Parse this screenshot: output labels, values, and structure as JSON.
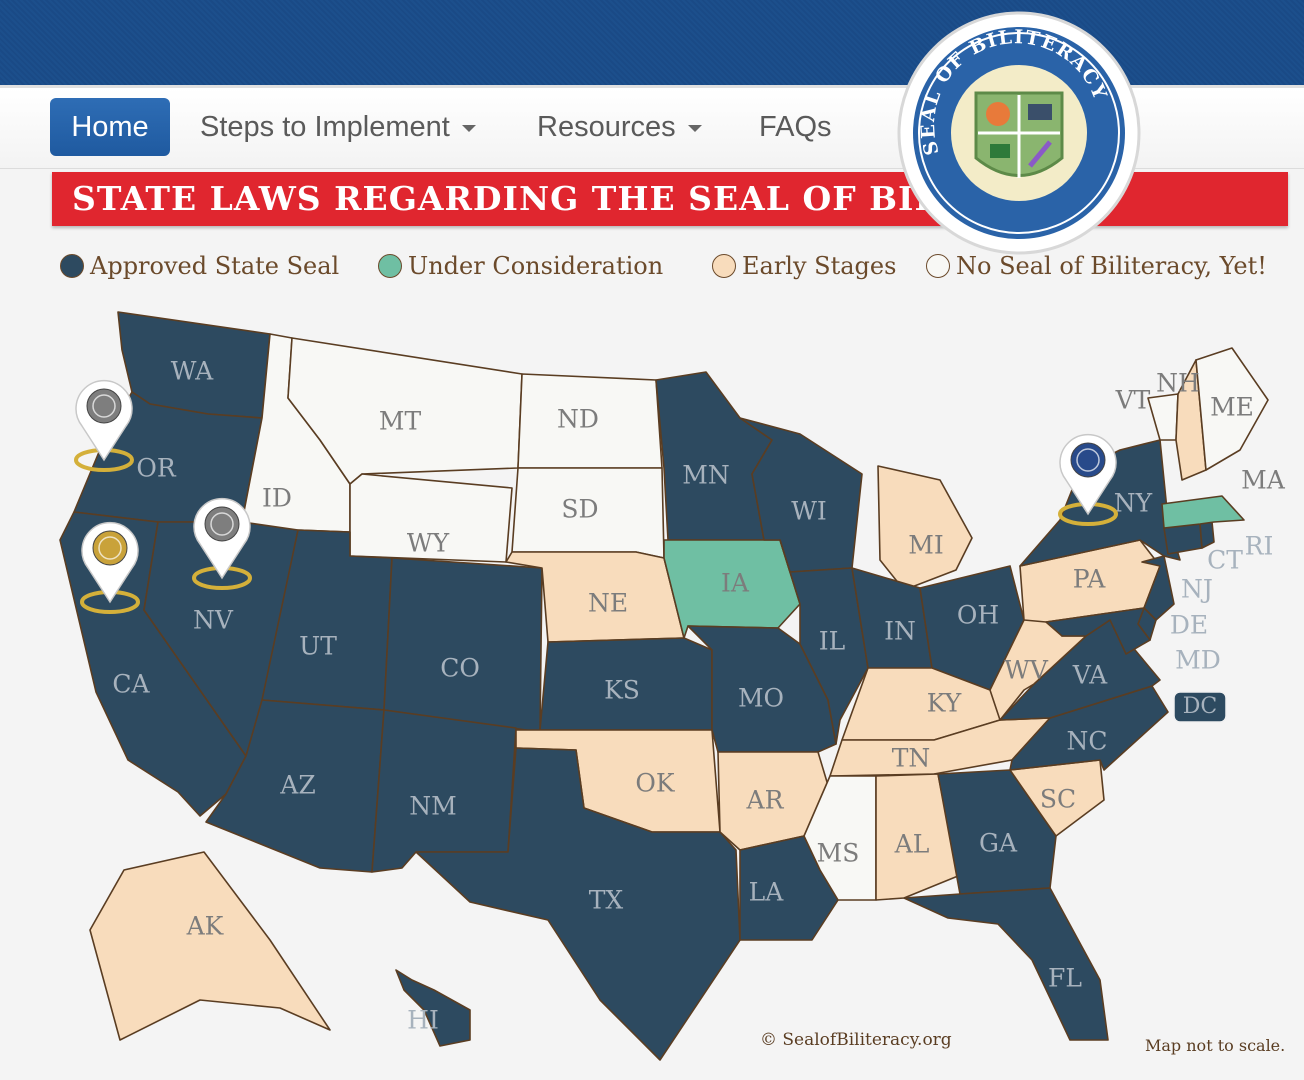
{
  "nav": {
    "home": "Home",
    "steps": "Steps to Implement",
    "resources": "Resources",
    "faqs": "FAQs"
  },
  "banner": {
    "title": "STATE LAWS REGARDING THE SEAL OF BILITERACY"
  },
  "seal": {
    "text": "SEAL OF BILITERACY"
  },
  "legend": {
    "approved": "Approved State Seal",
    "under_consideration": "Under Consideration",
    "early": "Early Stages",
    "none": "No Seal of Biliteracy, Yet!"
  },
  "colors": {
    "approved": "#2d4a60",
    "under_consideration": "#6fbfa3",
    "early": "#f8dcbc",
    "none": "#f8f8f5",
    "border": "#5a3d22",
    "banner": "#e0262f",
    "nav_active": "#2366ad"
  },
  "states": [
    {
      "abbr": "WA",
      "status": "approved"
    },
    {
      "abbr": "OR",
      "status": "approved"
    },
    {
      "abbr": "CA",
      "status": "approved"
    },
    {
      "abbr": "NV",
      "status": "approved"
    },
    {
      "abbr": "ID",
      "status": "none"
    },
    {
      "abbr": "MT",
      "status": "none"
    },
    {
      "abbr": "WY",
      "status": "none"
    },
    {
      "abbr": "UT",
      "status": "approved"
    },
    {
      "abbr": "AZ",
      "status": "approved"
    },
    {
      "abbr": "CO",
      "status": "approved"
    },
    {
      "abbr": "NM",
      "status": "approved"
    },
    {
      "abbr": "ND",
      "status": "none"
    },
    {
      "abbr": "SD",
      "status": "none"
    },
    {
      "abbr": "NE",
      "status": "early"
    },
    {
      "abbr": "KS",
      "status": "approved"
    },
    {
      "abbr": "OK",
      "status": "early"
    },
    {
      "abbr": "TX",
      "status": "approved"
    },
    {
      "abbr": "MN",
      "status": "approved"
    },
    {
      "abbr": "IA",
      "status": "under_consideration"
    },
    {
      "abbr": "MO",
      "status": "approved"
    },
    {
      "abbr": "AR",
      "status": "early"
    },
    {
      "abbr": "LA",
      "status": "approved"
    },
    {
      "abbr": "WI",
      "status": "approved"
    },
    {
      "abbr": "IL",
      "status": "approved"
    },
    {
      "abbr": "MI",
      "status": "early"
    },
    {
      "abbr": "IN",
      "status": "approved"
    },
    {
      "abbr": "OH",
      "status": "approved"
    },
    {
      "abbr": "KY",
      "status": "early"
    },
    {
      "abbr": "TN",
      "status": "early"
    },
    {
      "abbr": "MS",
      "status": "none"
    },
    {
      "abbr": "AL",
      "status": "early"
    },
    {
      "abbr": "GA",
      "status": "approved"
    },
    {
      "abbr": "FL",
      "status": "approved"
    },
    {
      "abbr": "SC",
      "status": "early"
    },
    {
      "abbr": "NC",
      "status": "approved"
    },
    {
      "abbr": "VA",
      "status": "approved"
    },
    {
      "abbr": "WV",
      "status": "early"
    },
    {
      "abbr": "PA",
      "status": "early"
    },
    {
      "abbr": "NY",
      "status": "approved"
    },
    {
      "abbr": "NJ",
      "status": "approved"
    },
    {
      "abbr": "DE",
      "status": "approved"
    },
    {
      "abbr": "MD",
      "status": "approved"
    },
    {
      "abbr": "DC",
      "status": "approved"
    },
    {
      "abbr": "CT",
      "status": "approved"
    },
    {
      "abbr": "RI",
      "status": "approved"
    },
    {
      "abbr": "MA",
      "status": "under_consideration"
    },
    {
      "abbr": "VT",
      "status": "none"
    },
    {
      "abbr": "NH",
      "status": "early"
    },
    {
      "abbr": "ME",
      "status": "none"
    },
    {
      "abbr": "AK",
      "status": "early"
    },
    {
      "abbr": "HI",
      "status": "approved"
    }
  ],
  "markers": [
    "OR",
    "CA",
    "NV",
    "NY"
  ],
  "footer": {
    "credit": "© SealofBiliteracy.org",
    "note": "Map not to scale."
  }
}
